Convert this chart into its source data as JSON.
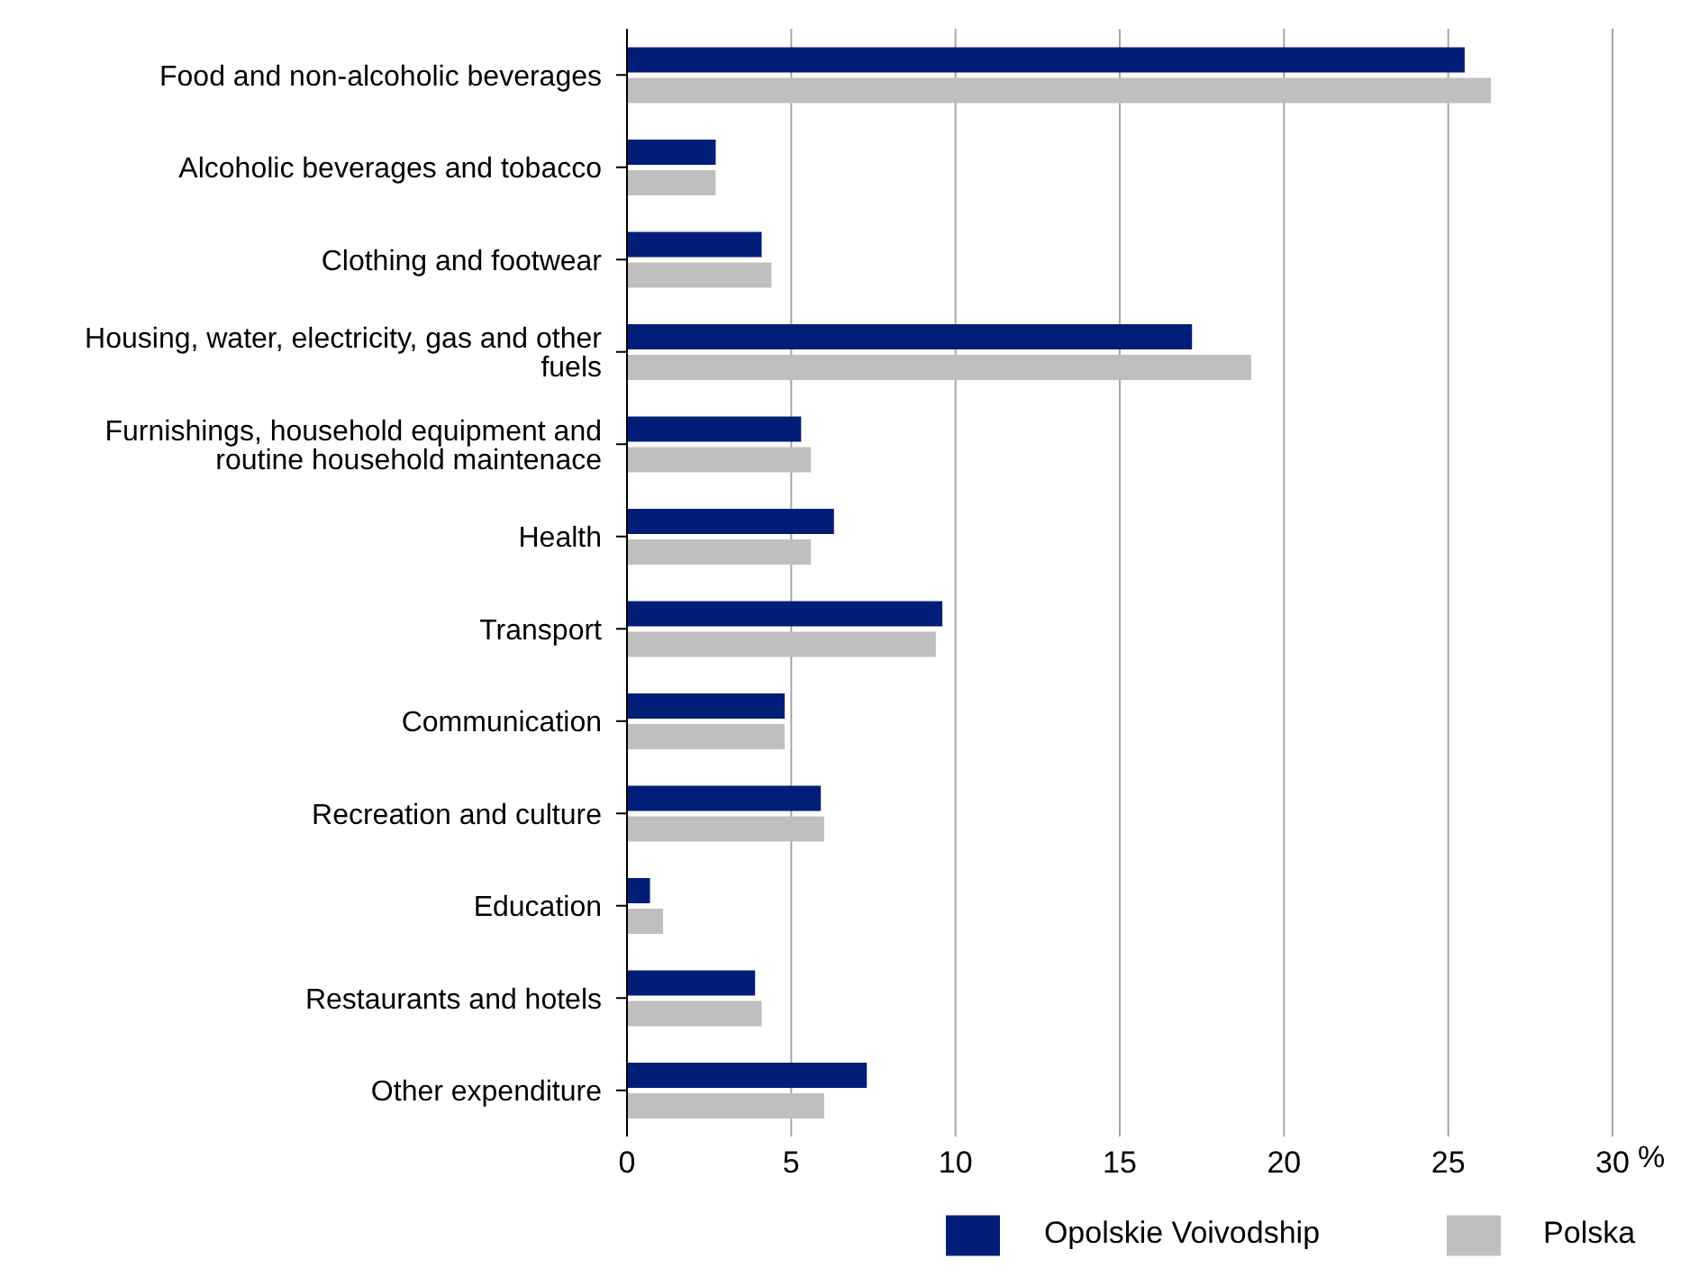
{
  "chart_data": {
    "type": "bar",
    "orientation": "horizontal",
    "xlabel": "%",
    "categories": [
      "Food and non-alcoholic beverages",
      "Alcoholic beverages and tobacco",
      "Clothing and footwear",
      "Housing, water, electricity, gas and other fuels",
      "Furnishings, household equipment and routine household maintenace",
      "Health",
      "Transport",
      "Communication",
      "Recreation and culture",
      "Education",
      "Restaurants and hotels",
      "Other expenditure"
    ],
    "series": [
      {
        "name": "Opolskie Voivodship",
        "color": "#001e78",
        "values": [
          25.5,
          2.7,
          4.1,
          17.2,
          5.3,
          6.3,
          9.6,
          4.8,
          5.9,
          0.7,
          3.9,
          7.3
        ]
      },
      {
        "name": "Polska",
        "color": "#bfbfbf",
        "values": [
          26.3,
          2.7,
          4.4,
          19.0,
          5.6,
          5.6,
          9.4,
          4.8,
          6.0,
          1.1,
          4.1,
          6.0
        ]
      }
    ],
    "xlim": [
      0,
      30
    ],
    "xticks": [
      0,
      5,
      10,
      15,
      20,
      25,
      30
    ],
    "grid": "x",
    "legend": "bottom"
  }
}
